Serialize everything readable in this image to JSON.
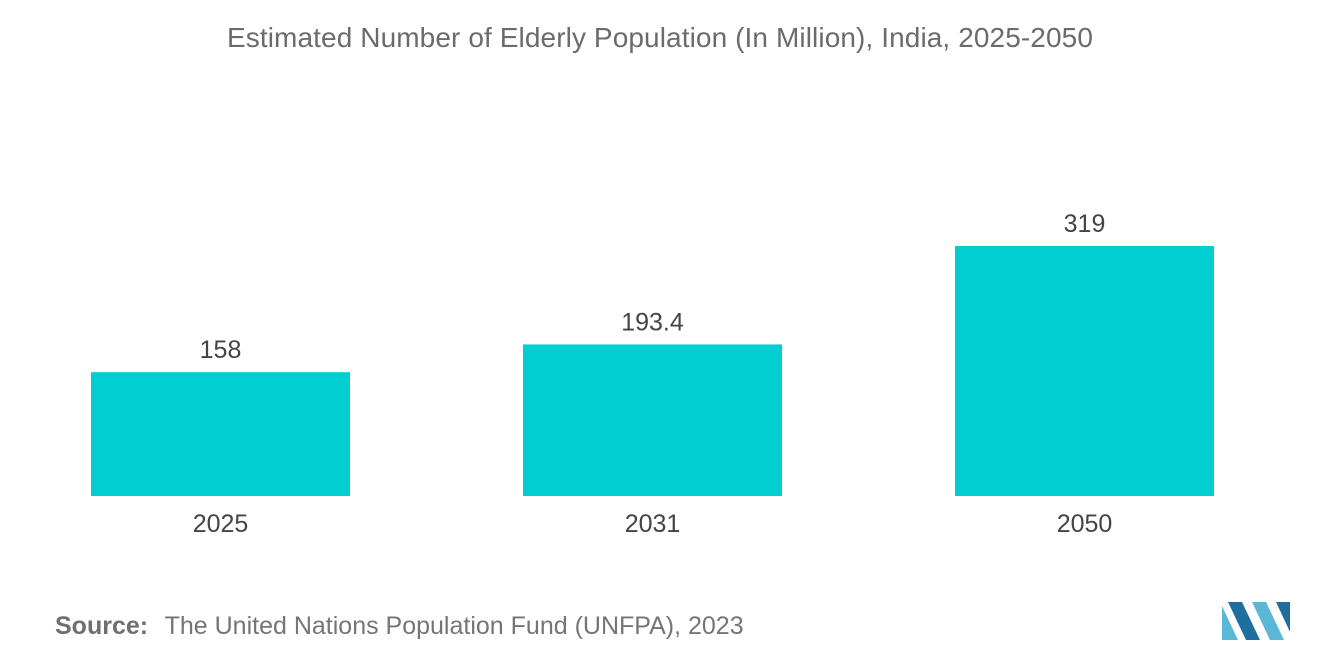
{
  "chart_data": {
    "type": "bar",
    "title": "Estimated Number of Elderly Population (In Million), India, 2025-2050",
    "categories": [
      "2025",
      "2031",
      "2050"
    ],
    "values": [
      158,
      193.4,
      319
    ],
    "value_labels": [
      "158",
      "193.4",
      "319"
    ],
    "xlabel": "",
    "ylabel": "",
    "ylim": [
      0,
      319
    ],
    "grid": false,
    "legend": "none",
    "bar_color": "#00ced1"
  },
  "source": {
    "label": "Source:",
    "text": "The United Nations Population Fund (UNFPA), 2023"
  },
  "logo": {
    "icon": "mordor-intelligence-logo",
    "colors": [
      "#5ab8d6",
      "#1e6fa0"
    ]
  }
}
